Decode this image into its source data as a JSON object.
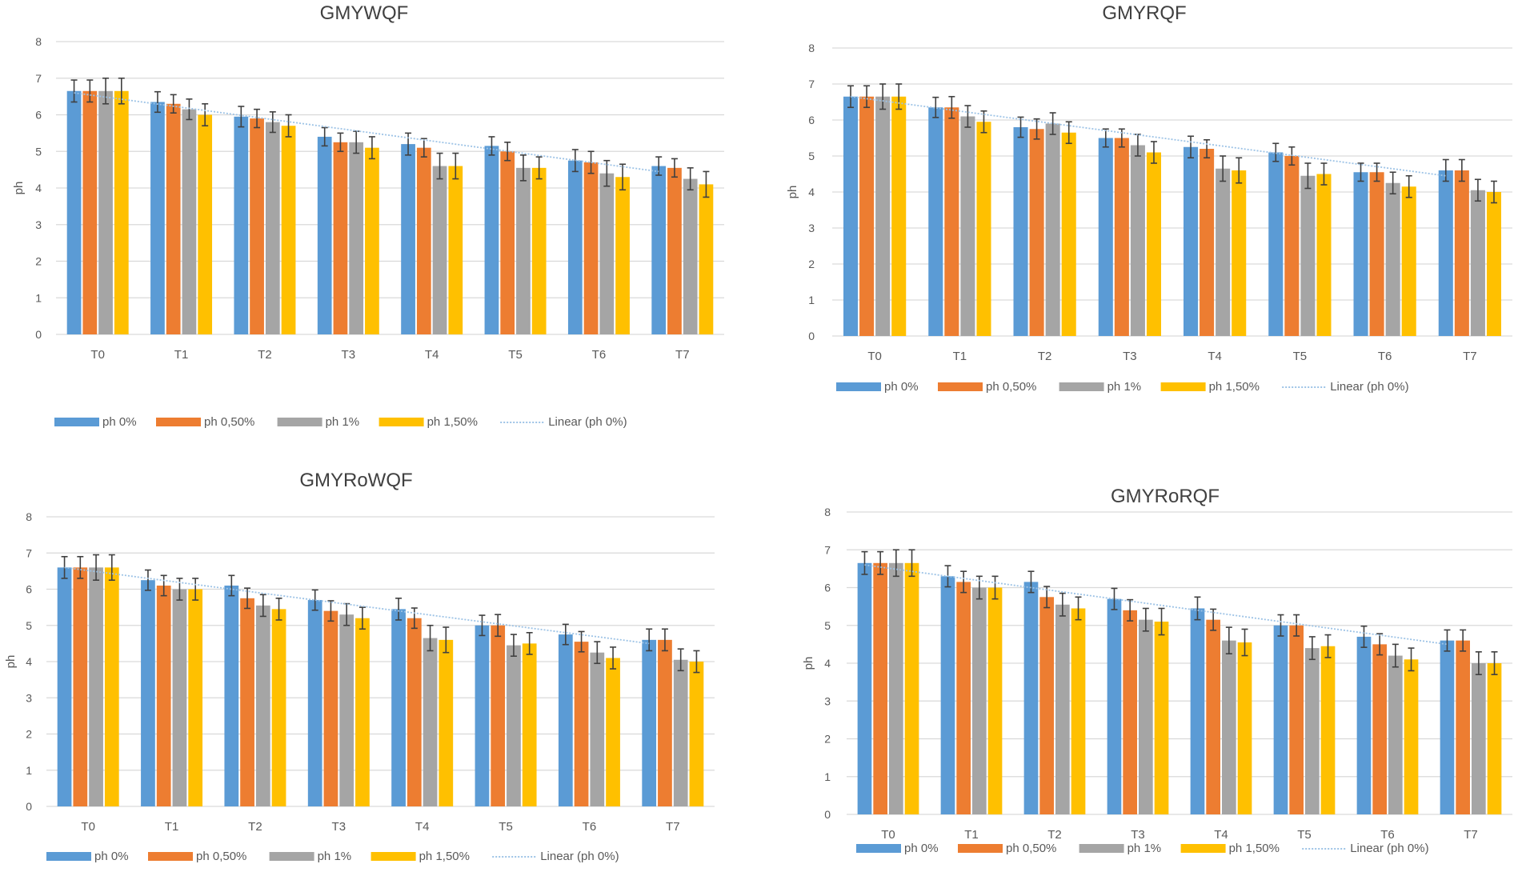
{
  "colors": {
    "ph0": "#5b9bd5",
    "ph050": "#ed7d31",
    "ph1": "#a5a5a5",
    "ph150": "#ffc000",
    "trend": "#9dc3e6",
    "grid": "#d9d9d9",
    "axis_text": "#595959",
    "title_text": "#404040",
    "error_bar": "#404040"
  },
  "chart_data": [
    {
      "type": "bar",
      "title": "GMYWQF",
      "xlabel": "",
      "ylabel": "ph",
      "ylim": [
        0,
        8
      ],
      "yticks": [
        "0",
        "1",
        "2",
        "3",
        "4",
        "5",
        "6",
        "7",
        "8"
      ],
      "grid": true,
      "legend_position": "bottom",
      "categories": [
        "T0",
        "T1",
        "T2",
        "T3",
        "T4",
        "T5",
        "T6",
        "T7"
      ],
      "series": [
        {
          "name": "ph 0%",
          "color_key": "ph0",
          "values": [
            6.65,
            6.35,
            5.95,
            5.4,
            5.2,
            5.15,
            4.75,
            4.6
          ],
          "errors": [
            0.3,
            0.28,
            0.28,
            0.25,
            0.3,
            0.25,
            0.3,
            0.25
          ]
        },
        {
          "name": "ph 0,50%",
          "color_key": "ph050",
          "values": [
            6.65,
            6.3,
            5.9,
            5.25,
            5.1,
            5.0,
            4.7,
            4.55
          ],
          "errors": [
            0.3,
            0.25,
            0.25,
            0.25,
            0.25,
            0.25,
            0.3,
            0.25
          ]
        },
        {
          "name": "ph 1%",
          "color_key": "ph1",
          "values": [
            6.65,
            6.15,
            5.8,
            5.25,
            4.6,
            4.55,
            4.4,
            4.25
          ],
          "errors": [
            0.35,
            0.28,
            0.28,
            0.3,
            0.35,
            0.35,
            0.35,
            0.3
          ]
        },
        {
          "name": "ph 1,50%",
          "color_key": "ph150",
          "values": [
            6.65,
            6.0,
            5.7,
            5.1,
            4.6,
            4.55,
            4.3,
            4.1
          ],
          "errors": [
            0.35,
            0.3,
            0.3,
            0.3,
            0.35,
            0.3,
            0.35,
            0.35
          ]
        }
      ],
      "trendline": {
        "name": "Linear (ph 0%)",
        "series": "ph 0%",
        "start": 6.6,
        "end": 4.45
      }
    },
    {
      "type": "bar",
      "title": "GMYRQF",
      "xlabel": "",
      "ylabel": "ph",
      "ylim": [
        0,
        8
      ],
      "yticks": [
        "0",
        "1",
        "2",
        "3",
        "4",
        "5",
        "6",
        "7",
        "8"
      ],
      "grid": true,
      "legend_position": "bottom",
      "categories": [
        "T0",
        "T1",
        "T2",
        "T3",
        "T4",
        "T5",
        "T6",
        "T7"
      ],
      "series": [
        {
          "name": "ph 0%",
          "color_key": "ph0",
          "values": [
            6.65,
            6.35,
            5.8,
            5.5,
            5.25,
            5.1,
            4.55,
            4.6
          ],
          "errors": [
            0.3,
            0.28,
            0.28,
            0.25,
            0.3,
            0.25,
            0.25,
            0.3
          ]
        },
        {
          "name": "ph 0,50%",
          "color_key": "ph050",
          "values": [
            6.65,
            6.35,
            5.75,
            5.5,
            5.2,
            5.0,
            4.55,
            4.6
          ],
          "errors": [
            0.3,
            0.3,
            0.28,
            0.25,
            0.25,
            0.25,
            0.25,
            0.3
          ]
        },
        {
          "name": "ph 1%",
          "color_key": "ph1",
          "values": [
            6.65,
            6.1,
            5.9,
            5.3,
            4.65,
            4.45,
            4.25,
            4.05
          ],
          "errors": [
            0.35,
            0.3,
            0.3,
            0.3,
            0.35,
            0.35,
            0.3,
            0.3
          ]
        },
        {
          "name": "ph 1,50%",
          "color_key": "ph150",
          "values": [
            6.65,
            5.95,
            5.65,
            5.1,
            4.6,
            4.5,
            4.15,
            4.0
          ],
          "errors": [
            0.35,
            0.3,
            0.3,
            0.3,
            0.35,
            0.3,
            0.3,
            0.3
          ]
        }
      ],
      "trendline": {
        "name": "Linear (ph 0%)",
        "series": "ph 0%",
        "start": 6.65,
        "end": 4.45
      }
    },
    {
      "type": "bar",
      "title": "GMYRoWQF",
      "xlabel": "",
      "ylabel": "ph",
      "ylim": [
        0,
        8
      ],
      "yticks": [
        "0",
        "1",
        "2",
        "3",
        "4",
        "5",
        "6",
        "7",
        "8"
      ],
      "grid": true,
      "legend_position": "bottom",
      "categories": [
        "T0",
        "T1",
        "T2",
        "T3",
        "T4",
        "T5",
        "T6",
        "T7"
      ],
      "series": [
        {
          "name": "ph 0%",
          "color_key": "ph0",
          "values": [
            6.6,
            6.25,
            6.1,
            5.7,
            5.45,
            5.0,
            4.75,
            4.6
          ],
          "errors": [
            0.3,
            0.28,
            0.28,
            0.28,
            0.3,
            0.28,
            0.28,
            0.3
          ]
        },
        {
          "name": "ph 0,50%",
          "color_key": "ph050",
          "values": [
            6.6,
            6.1,
            5.75,
            5.4,
            5.2,
            5.0,
            4.55,
            4.6
          ],
          "errors": [
            0.3,
            0.28,
            0.28,
            0.28,
            0.28,
            0.3,
            0.28,
            0.3
          ]
        },
        {
          "name": "ph 1%",
          "color_key": "ph1",
          "values": [
            6.6,
            6.0,
            5.55,
            5.3,
            4.65,
            4.45,
            4.25,
            4.05
          ],
          "errors": [
            0.35,
            0.3,
            0.3,
            0.3,
            0.35,
            0.3,
            0.3,
            0.3
          ]
        },
        {
          "name": "ph 1,50%",
          "color_key": "ph150",
          "values": [
            6.6,
            6.0,
            5.45,
            5.2,
            4.6,
            4.5,
            4.1,
            4.0
          ],
          "errors": [
            0.35,
            0.3,
            0.3,
            0.3,
            0.35,
            0.3,
            0.3,
            0.3
          ]
        }
      ],
      "trendline": {
        "name": "Linear (ph 0%)",
        "series": "ph 0%",
        "start": 6.6,
        "end": 4.5
      }
    },
    {
      "type": "bar",
      "title": "GMYRoRQF",
      "xlabel": "",
      "ylabel": "ph",
      "ylim": [
        0,
        8
      ],
      "yticks": [
        "0",
        "1",
        "2",
        "3",
        "4",
        "5",
        "6",
        "7",
        "8"
      ],
      "grid": true,
      "legend_position": "bottom",
      "categories": [
        "T0",
        "T1",
        "T2",
        "T3",
        "T4",
        "T5",
        "T6",
        "T7"
      ],
      "series": [
        {
          "name": "ph 0%",
          "color_key": "ph0",
          "values": [
            6.65,
            6.3,
            6.15,
            5.7,
            5.45,
            5.0,
            4.7,
            4.6
          ],
          "errors": [
            0.3,
            0.28,
            0.28,
            0.28,
            0.3,
            0.28,
            0.28,
            0.28
          ]
        },
        {
          "name": "ph 0,50%",
          "color_key": "ph050",
          "values": [
            6.65,
            6.15,
            5.75,
            5.4,
            5.15,
            5.0,
            4.5,
            4.6
          ],
          "errors": [
            0.3,
            0.28,
            0.28,
            0.28,
            0.28,
            0.28,
            0.28,
            0.28
          ]
        },
        {
          "name": "ph 1%",
          "color_key": "ph1",
          "values": [
            6.65,
            6.0,
            5.55,
            5.15,
            4.6,
            4.4,
            4.2,
            4.0
          ],
          "errors": [
            0.35,
            0.3,
            0.3,
            0.3,
            0.35,
            0.3,
            0.3,
            0.3
          ]
        },
        {
          "name": "ph 1,50%",
          "color_key": "ph150",
          "values": [
            6.65,
            6.0,
            5.45,
            5.1,
            4.55,
            4.45,
            4.1,
            4.0
          ],
          "errors": [
            0.35,
            0.3,
            0.3,
            0.35,
            0.35,
            0.3,
            0.3,
            0.3
          ]
        }
      ],
      "trendline": {
        "name": "Linear (ph 0%)",
        "series": "ph 0%",
        "start": 6.6,
        "end": 4.5
      }
    }
  ]
}
